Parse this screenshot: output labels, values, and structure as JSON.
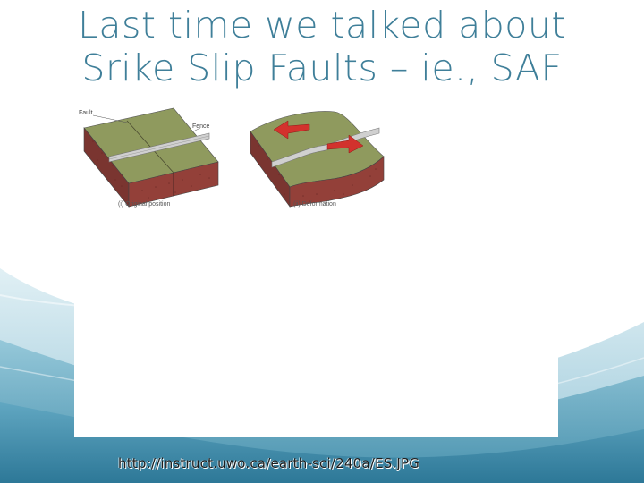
{
  "slide": {
    "title_line1": "Last time we talked about",
    "title_line2": "Srike Slip Faults – ie., SAF",
    "source_url": "http://instruct.uwo.ca/earth-sci/240a/ES.JPG"
  },
  "figure": {
    "label_fault": "Fault",
    "label_fence": "Fence",
    "caption_left": "(i) Original position",
    "caption_right": "(ii) Deformation"
  },
  "colors": {
    "title": "#3f7f99",
    "wave_dark": "#2f7f9e",
    "wave_light": "#bfdbe6",
    "block_top": "#8f9a5e",
    "block_side": "#8a3a34",
    "arrow": "#d2322d"
  }
}
